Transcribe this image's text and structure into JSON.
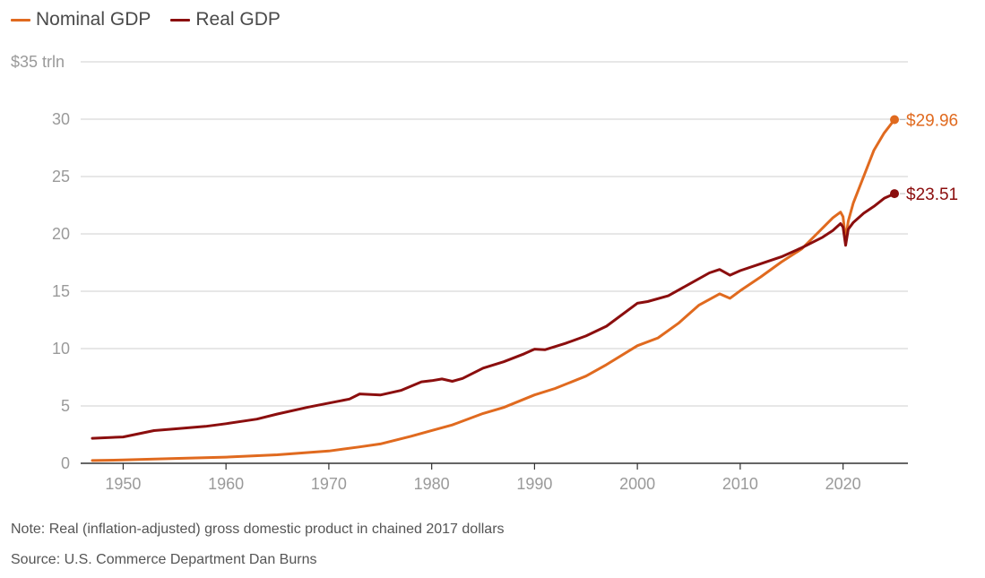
{
  "chart_data": {
    "type": "line",
    "title": "",
    "xlabel": "",
    "ylabel": "",
    "xlim": [
      1947,
      2025
    ],
    "ylim": [
      0,
      35
    ],
    "x_ticks": [
      1950,
      1960,
      1970,
      1980,
      1990,
      2000,
      2010,
      2020
    ],
    "x_tick_labels": [
      "1950",
      "1960",
      "1970",
      "1980",
      "1990",
      "2000",
      "2010",
      "2020"
    ],
    "y_ticks": [
      0,
      5,
      10,
      15,
      20,
      25,
      30,
      35
    ],
    "y_tick_labels": [
      "0",
      "5",
      "10",
      "15",
      "20",
      "25",
      "30",
      "$35 trln"
    ],
    "grid": true,
    "legend_position": "top-left",
    "series": [
      {
        "name": "Nominal GDP",
        "color": "#e06a1f",
        "end_label": "$29.96",
        "end_value": 29.96,
        "points": [
          [
            1947,
            0.24
          ],
          [
            1950,
            0.29
          ],
          [
            1955,
            0.42
          ],
          [
            1960,
            0.54
          ],
          [
            1965,
            0.74
          ],
          [
            1970,
            1.07
          ],
          [
            1973,
            1.43
          ],
          [
            1975,
            1.69
          ],
          [
            1978,
            2.36
          ],
          [
            1980,
            2.86
          ],
          [
            1982,
            3.34
          ],
          [
            1985,
            4.34
          ],
          [
            1987,
            4.87
          ],
          [
            1990,
            5.96
          ],
          [
            1992,
            6.52
          ],
          [
            1995,
            7.6
          ],
          [
            1997,
            8.6
          ],
          [
            2000,
            10.25
          ],
          [
            2002,
            10.93
          ],
          [
            2004,
            12.21
          ],
          [
            2006,
            13.8
          ],
          [
            2008,
            14.77
          ],
          [
            2009,
            14.38
          ],
          [
            2010,
            15.05
          ],
          [
            2012,
            16.25
          ],
          [
            2014,
            17.55
          ],
          [
            2016,
            18.7
          ],
          [
            2018,
            20.5
          ],
          [
            2019,
            21.4
          ],
          [
            2019.75,
            21.9
          ],
          [
            2020,
            21.5
          ],
          [
            2020.25,
            19.5
          ],
          [
            2020.5,
            21.1
          ],
          [
            2021,
            22.7
          ],
          [
            2022,
            25.0
          ],
          [
            2023,
            27.3
          ],
          [
            2024,
            28.8
          ],
          [
            2025,
            29.96
          ]
        ]
      },
      {
        "name": "Real GDP",
        "color": "#8b0e0e",
        "end_label": "$23.51",
        "end_value": 23.51,
        "points": [
          [
            1947,
            2.18
          ],
          [
            1950,
            2.3
          ],
          [
            1953,
            2.85
          ],
          [
            1955,
            3.0
          ],
          [
            1958,
            3.22
          ],
          [
            1960,
            3.45
          ],
          [
            1963,
            3.85
          ],
          [
            1965,
            4.3
          ],
          [
            1968,
            4.9
          ],
          [
            1970,
            5.25
          ],
          [
            1972,
            5.6
          ],
          [
            1973,
            6.05
          ],
          [
            1975,
            5.95
          ],
          [
            1977,
            6.35
          ],
          [
            1979,
            7.1
          ],
          [
            1980,
            7.2
          ],
          [
            1981,
            7.35
          ],
          [
            1982,
            7.15
          ],
          [
            1983,
            7.4
          ],
          [
            1985,
            8.3
          ],
          [
            1987,
            8.85
          ],
          [
            1989,
            9.55
          ],
          [
            1990,
            9.95
          ],
          [
            1991,
            9.9
          ],
          [
            1993,
            10.45
          ],
          [
            1995,
            11.1
          ],
          [
            1997,
            11.95
          ],
          [
            2000,
            13.95
          ],
          [
            2001,
            14.1
          ],
          [
            2003,
            14.6
          ],
          [
            2005,
            15.6
          ],
          [
            2007,
            16.6
          ],
          [
            2008,
            16.9
          ],
          [
            2009,
            16.4
          ],
          [
            2010,
            16.8
          ],
          [
            2012,
            17.4
          ],
          [
            2014,
            18.0
          ],
          [
            2016,
            18.8
          ],
          [
            2018,
            19.7
          ],
          [
            2019,
            20.3
          ],
          [
            2019.75,
            20.9
          ],
          [
            2020,
            20.6
          ],
          [
            2020.25,
            19.0
          ],
          [
            2020.5,
            20.4
          ],
          [
            2021,
            21.0
          ],
          [
            2022,
            21.8
          ],
          [
            2023,
            22.4
          ],
          [
            2024,
            23.1
          ],
          [
            2025,
            23.51
          ]
        ]
      }
    ]
  },
  "legend": {
    "items": [
      {
        "label": "Nominal GDP",
        "color": "#e06a1f"
      },
      {
        "label": "Real GDP",
        "color": "#8b0e0e"
      }
    ]
  },
  "footer": {
    "note": "Note: Real (inflation-adjusted) gross domestic product in chained 2017 dollars",
    "source": "Source: U.S. Commerce Department  Dan Burns"
  }
}
